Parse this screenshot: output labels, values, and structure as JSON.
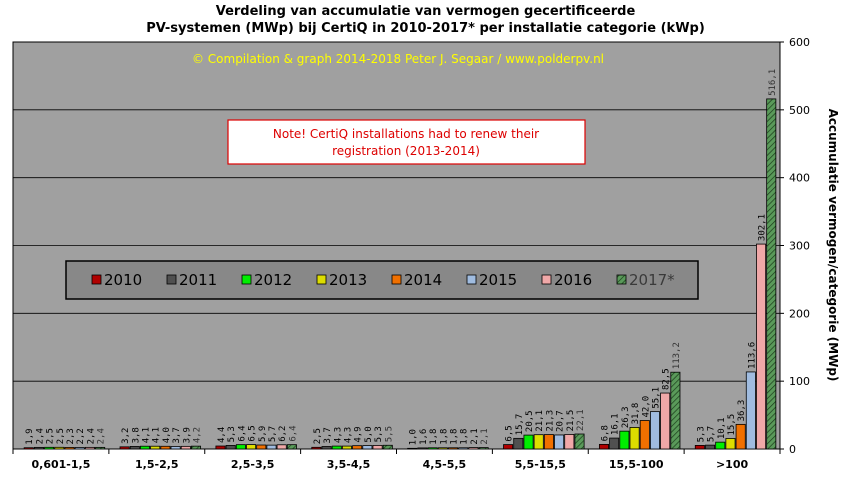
{
  "title_line1": "Verdeling van accumulatie van vermogen gecertificeerde",
  "title_line2": "PV-systemen (MWp) bij CertiQ in 2010-2017*  per installatie categorie (kWp)",
  "copyright": "© Compilation  & graph 2014-2018 Peter J. Segaar / www.polderpv.nl",
  "note": [
    "Note! CertiQ installations  had to renew  their",
    "registration  (2013-2014)"
  ],
  "colors": {
    "plot_bg": "#a0a0a0",
    "legend_bg": "#888888",
    "copyright": "#ffff00",
    "note_border": "#dd0000",
    "note_text": "#dd0000",
    "series": [
      "#b00000",
      "#505050",
      "#00ee00",
      "#dddd00",
      "#f07000",
      "#a0bce0",
      "#f0a8a8",
      "#5a9a5a"
    ]
  },
  "chart_data": {
    "type": "bar",
    "ylabel": "Accumulatie vermogen/categorie  (MWp)",
    "ylim": [
      0,
      600
    ],
    "yticks": [
      "0",
      "100",
      "200",
      "300",
      "400",
      "500",
      "600"
    ],
    "grid": true,
    "legend_position": "left-middle",
    "categories": [
      "0,601-1,5",
      "1,5-2,5",
      "2,5-3,5",
      "3,5-4,5",
      "4,5-5,5",
      "5,5-15,5",
      "15,5-100",
      ">100"
    ],
    "series": [
      {
        "name": "2010",
        "values": [
          1.9,
          3.2,
          4.4,
          2.5,
          1.0,
          6.5,
          6.8,
          5.3
        ],
        "labels": [
          "1,9",
          "3,2",
          "4,4",
          "2,5",
          "1,0",
          "6,5",
          "6,8",
          "5,3"
        ]
      },
      {
        "name": "2011",
        "values": [
          2.4,
          3.8,
          5.3,
          3.7,
          1.6,
          15.7,
          16.1,
          5.7
        ],
        "labels": [
          "2,4",
          "3,8",
          "5,3",
          "3,7",
          "1,6",
          "15,7",
          "16,1",
          "5,7"
        ]
      },
      {
        "name": "2012",
        "values": [
          2.5,
          4.1,
          6.4,
          4.3,
          1.8,
          20.5,
          26.3,
          10.1
        ],
        "labels": [
          "2,5",
          "4,1",
          "6,4",
          "4,3",
          "1,8",
          "20,5",
          "26,3",
          "10,1"
        ]
      },
      {
        "name": "2013",
        "values": [
          2.5,
          4.1,
          6.5,
          4.3,
          1.8,
          21.1,
          31.8,
          15.5
        ],
        "labels": [
          "2,5",
          "4,1",
          "6,5",
          "4,3",
          "1,8",
          "21,1",
          "31,8",
          "15,5"
        ]
      },
      {
        "name": "2014",
        "values": [
          2.3,
          4.0,
          5.9,
          4.9,
          1.8,
          21.3,
          42.0,
          36.3
        ],
        "labels": [
          "2,3",
          "4,0",
          "5,9",
          "4,9",
          "1,8",
          "21,3",
          "42,0",
          "36,3"
        ]
      },
      {
        "name": "2015",
        "values": [
          2.2,
          3.7,
          5.7,
          5.0,
          1.8,
          20.7,
          55.1,
          113.6
        ],
        "labels": [
          "2,2",
          "3,7",
          "5,7",
          "5,0",
          "1,8",
          "20,7",
          "55,1",
          "113,6"
        ]
      },
      {
        "name": "2016",
        "values": [
          2.4,
          3.9,
          6.2,
          5.3,
          2.1,
          21.5,
          82.5,
          302.1
        ],
        "labels": [
          "2,4",
          "3,9",
          "6,2",
          "5,3",
          "2,1",
          "21,5",
          "82,5",
          "302,1"
        ]
      },
      {
        "name": "2017*",
        "values": [
          2.4,
          4.2,
          6.4,
          5.5,
          2.1,
          22.1,
          113.2,
          516.1
        ],
        "labels": [
          "2,4",
          "4,2",
          "6,4",
          "5,5",
          "2,1",
          "22,1",
          "113,2",
          "516,1"
        ]
      }
    ]
  }
}
